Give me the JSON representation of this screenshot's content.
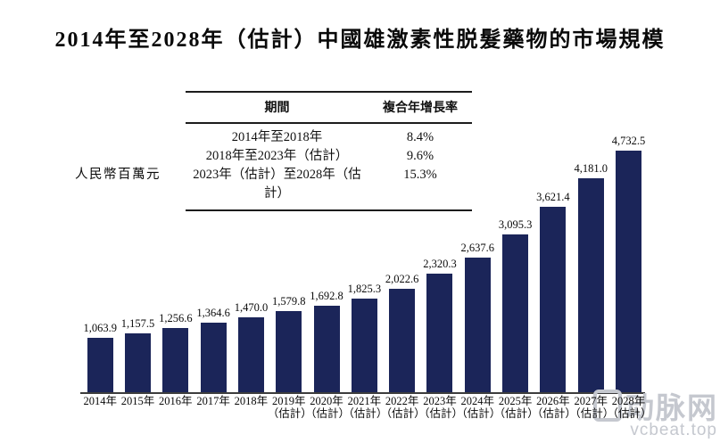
{
  "title": "2014年至2028年（估計）中國雄激素性脱髮藥物的市場規模",
  "y_axis_label": "人民幣百萬元",
  "cagr_table": {
    "headers": [
      "期間",
      "複合年增長率"
    ],
    "rows": [
      {
        "period": "2014年至2018年",
        "cagr": "8.4%"
      },
      {
        "period": "2018年至2023年（估計）",
        "cagr": "9.6%"
      },
      {
        "period": "2023年（估計）至2028年（估計）",
        "cagr": "15.3%"
      }
    ]
  },
  "chart_data": {
    "type": "bar",
    "title": "2014年至2028年（估計）中國雄激素性脱髮藥物的市場規模",
    "ylabel": "人民幣百萬元",
    "xlabel": "",
    "categories": [
      "2014年",
      "2015年",
      "2016年",
      "2017年",
      "2018年",
      "2019年（估計）",
      "2020年（估計）",
      "2021年（估計）",
      "2022年（估計）",
      "2023年（估計）",
      "2024年（估計）",
      "2025年（估計）",
      "2026年（估計）",
      "2027年（估計）",
      "2028年（估計）"
    ],
    "values": [
      1063.9,
      1157.5,
      1256.6,
      1364.6,
      1470.0,
      1579.8,
      1692.8,
      1825.3,
      2022.6,
      2320.3,
      2637.6,
      3095.3,
      3621.4,
      4181.0,
      4732.5
    ],
    "value_labels": [
      "1,063.9",
      "1,157.5",
      "1,256.6",
      "1,364.6",
      "1,470.0",
      "1,579.8",
      "1,692.8",
      "1,825.3",
      "2,022.6",
      "2,320.3",
      "2,637.6",
      "3,095.3",
      "3,621.4",
      "4,181.0",
      "4,732.5"
    ],
    "bar_color": "#1b2559",
    "ylim": [
      0,
      5000
    ],
    "grid": false,
    "legend": "none"
  },
  "watermark": {
    "logo_text": "动脉网",
    "site_text": "vcbeat.top"
  }
}
